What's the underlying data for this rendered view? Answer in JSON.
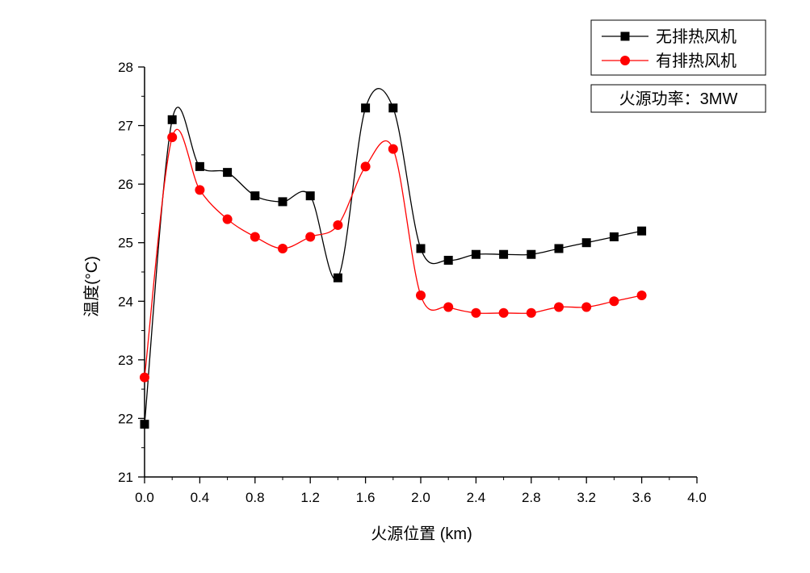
{
  "chart_data": {
    "type": "line",
    "xlabel": "火源位置 (km)",
    "ylabel": "温度(°C)",
    "xlim": [
      0,
      4.0
    ],
    "ylim": [
      21,
      28
    ],
    "xticks": [
      "0.0",
      "0.4",
      "0.8",
      "1.2",
      "1.6",
      "2.0",
      "2.4",
      "2.8",
      "3.2",
      "3.6",
      "4.0"
    ],
    "yticks": [
      "21",
      "22",
      "23",
      "24",
      "25",
      "26",
      "27",
      "28"
    ],
    "x": [
      0,
      0.2,
      0.4,
      0.6,
      0.8,
      1.0,
      1.2,
      1.4,
      1.6,
      1.8,
      2.0,
      2.2,
      2.4,
      2.6,
      2.8,
      3.0,
      3.2,
      3.4,
      3.6
    ],
    "series": [
      {
        "name": "无排热风机",
        "color": "#000000",
        "marker": "square",
        "values": [
          21.9,
          27.1,
          26.3,
          26.2,
          25.8,
          25.7,
          25.8,
          24.4,
          27.3,
          27.3,
          24.9,
          24.7,
          24.8,
          24.8,
          24.8,
          24.9,
          25.0,
          25.1,
          25.2
        ]
      },
      {
        "name": "有排热风机",
        "color": "#ff0000",
        "marker": "circle",
        "values": [
          22.7,
          26.8,
          25.9,
          25.4,
          25.1,
          24.9,
          25.1,
          25.3,
          26.3,
          26.6,
          24.1,
          23.9,
          23.8,
          23.8,
          23.8,
          23.9,
          23.9,
          24.0,
          24.1
        ]
      }
    ],
    "legend_position": "top-right",
    "annotation": "火源功率：3MW",
    "grid": false
  }
}
